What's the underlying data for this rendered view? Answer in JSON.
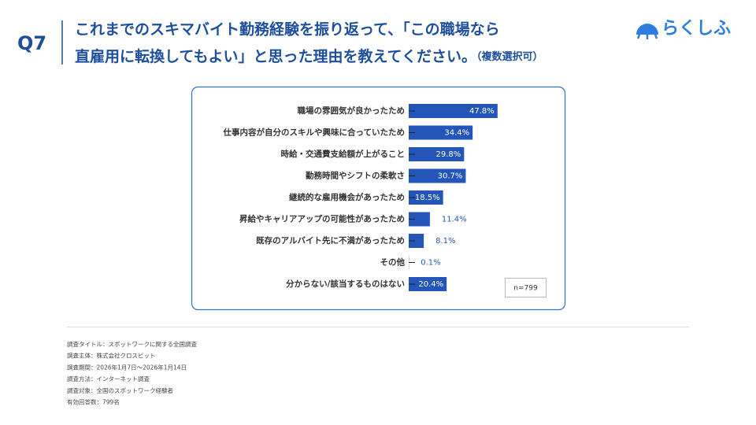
{
  "header": {
    "question": "Q7",
    "title_line1": "これまでのスキマバイト勤務経験を振り返って、「この職場なら",
    "title_line2": "直雇用に転換してもよい」と思った理由を教えてください。",
    "title_note": "（複数選択可）",
    "logo": "らくしふ"
  },
  "chart_data": {
    "type": "bar",
    "orientation": "horizontal",
    "color": "#2356b8",
    "categories": [
      "職場の雰囲気が良かったため",
      "仕事内容が自分のスキルや興味に合っていたため",
      "時給・交通費支給額が上がること",
      "勤務時間やシフトの柔軟さ",
      "継続的な雇用機会があったため",
      "昇給やキャリアアップの可能性があったため",
      "既存のアルバイト先に不満があったため",
      "その他",
      "分からない/該当するものはない"
    ],
    "values": [
      47.8,
      34.4,
      29.8,
      30.7,
      18.5,
      11.4,
      8.1,
      0.1,
      20.4
    ],
    "value_labels": [
      "47.8%",
      "34.4%",
      "29.8%",
      "30.7%",
      "18.5%",
      "11.4%",
      "8.1%",
      "0.1%",
      "20.4%"
    ],
    "note": "n=799"
  },
  "footer": {
    "lines": [
      "調査タイトル：スポットワークに関する全国調査",
      "調査主体：株式会社クロスビット",
      "調査期間：2026年1月7日〜2026年1月14日",
      "調査方法：インターネット調査",
      "調査対象：全国のスポットワーク経験者",
      "有効回答数：799名"
    ]
  }
}
